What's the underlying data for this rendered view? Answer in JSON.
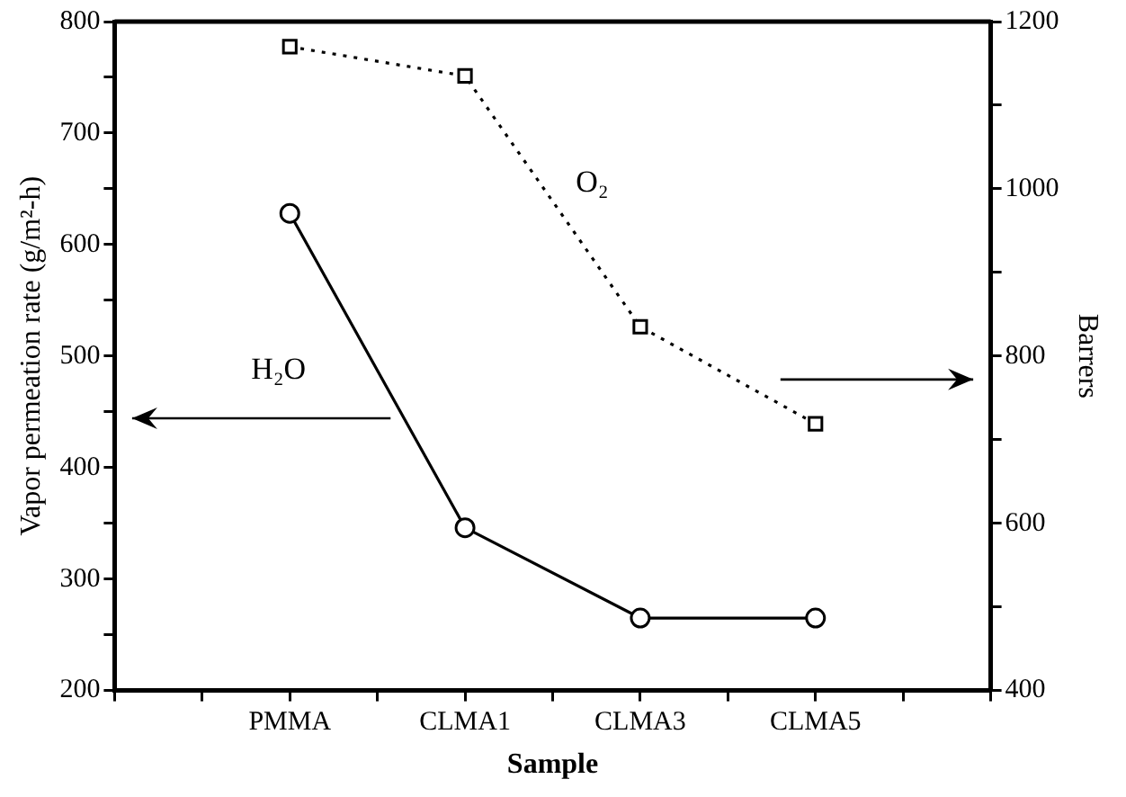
{
  "chart_data": {
    "type": "line",
    "categories": [
      "PMMA",
      "CLMA1",
      "CLMA3",
      "CLMA5"
    ],
    "xlabel": "Sample",
    "ylabel": "Vapor permeation rate (g/m²-h)",
    "y2label": "Barrers",
    "ylim": [
      200,
      800
    ],
    "yticks": [
      200,
      {
        "value": 250,
        "label": null
      },
      300,
      {
        "value": 350,
        "label": null
      },
      400,
      {
        "value": 450,
        "label": null
      },
      500,
      {
        "value": 550,
        "label": null
      },
      600,
      {
        "value": 650,
        "label": null
      },
      700,
      {
        "value": 750,
        "label": null
      },
      800
    ],
    "y2lim": [
      400,
      1200
    ],
    "y2ticks": [
      400,
      {
        "value": 500,
        "label": null
      },
      600,
      {
        "value": 700,
        "label": null
      },
      800,
      {
        "value": 900,
        "label": null
      },
      1000,
      {
        "value": 1100,
        "label": null
      },
      1200
    ],
    "grid": false,
    "legend": false,
    "series": [
      {
        "name": "H₂O",
        "color": "#000000",
        "values": [
          628,
          346,
          265,
          265
        ],
        "marker": "circle",
        "line_style": "solid"
      },
      {
        "name": "O₂",
        "color": "#000000",
        "values": [
          1170,
          1135,
          835,
          719
        ],
        "axis": "y2",
        "marker": "square",
        "line_style": "dotted"
      }
    ]
  }
}
